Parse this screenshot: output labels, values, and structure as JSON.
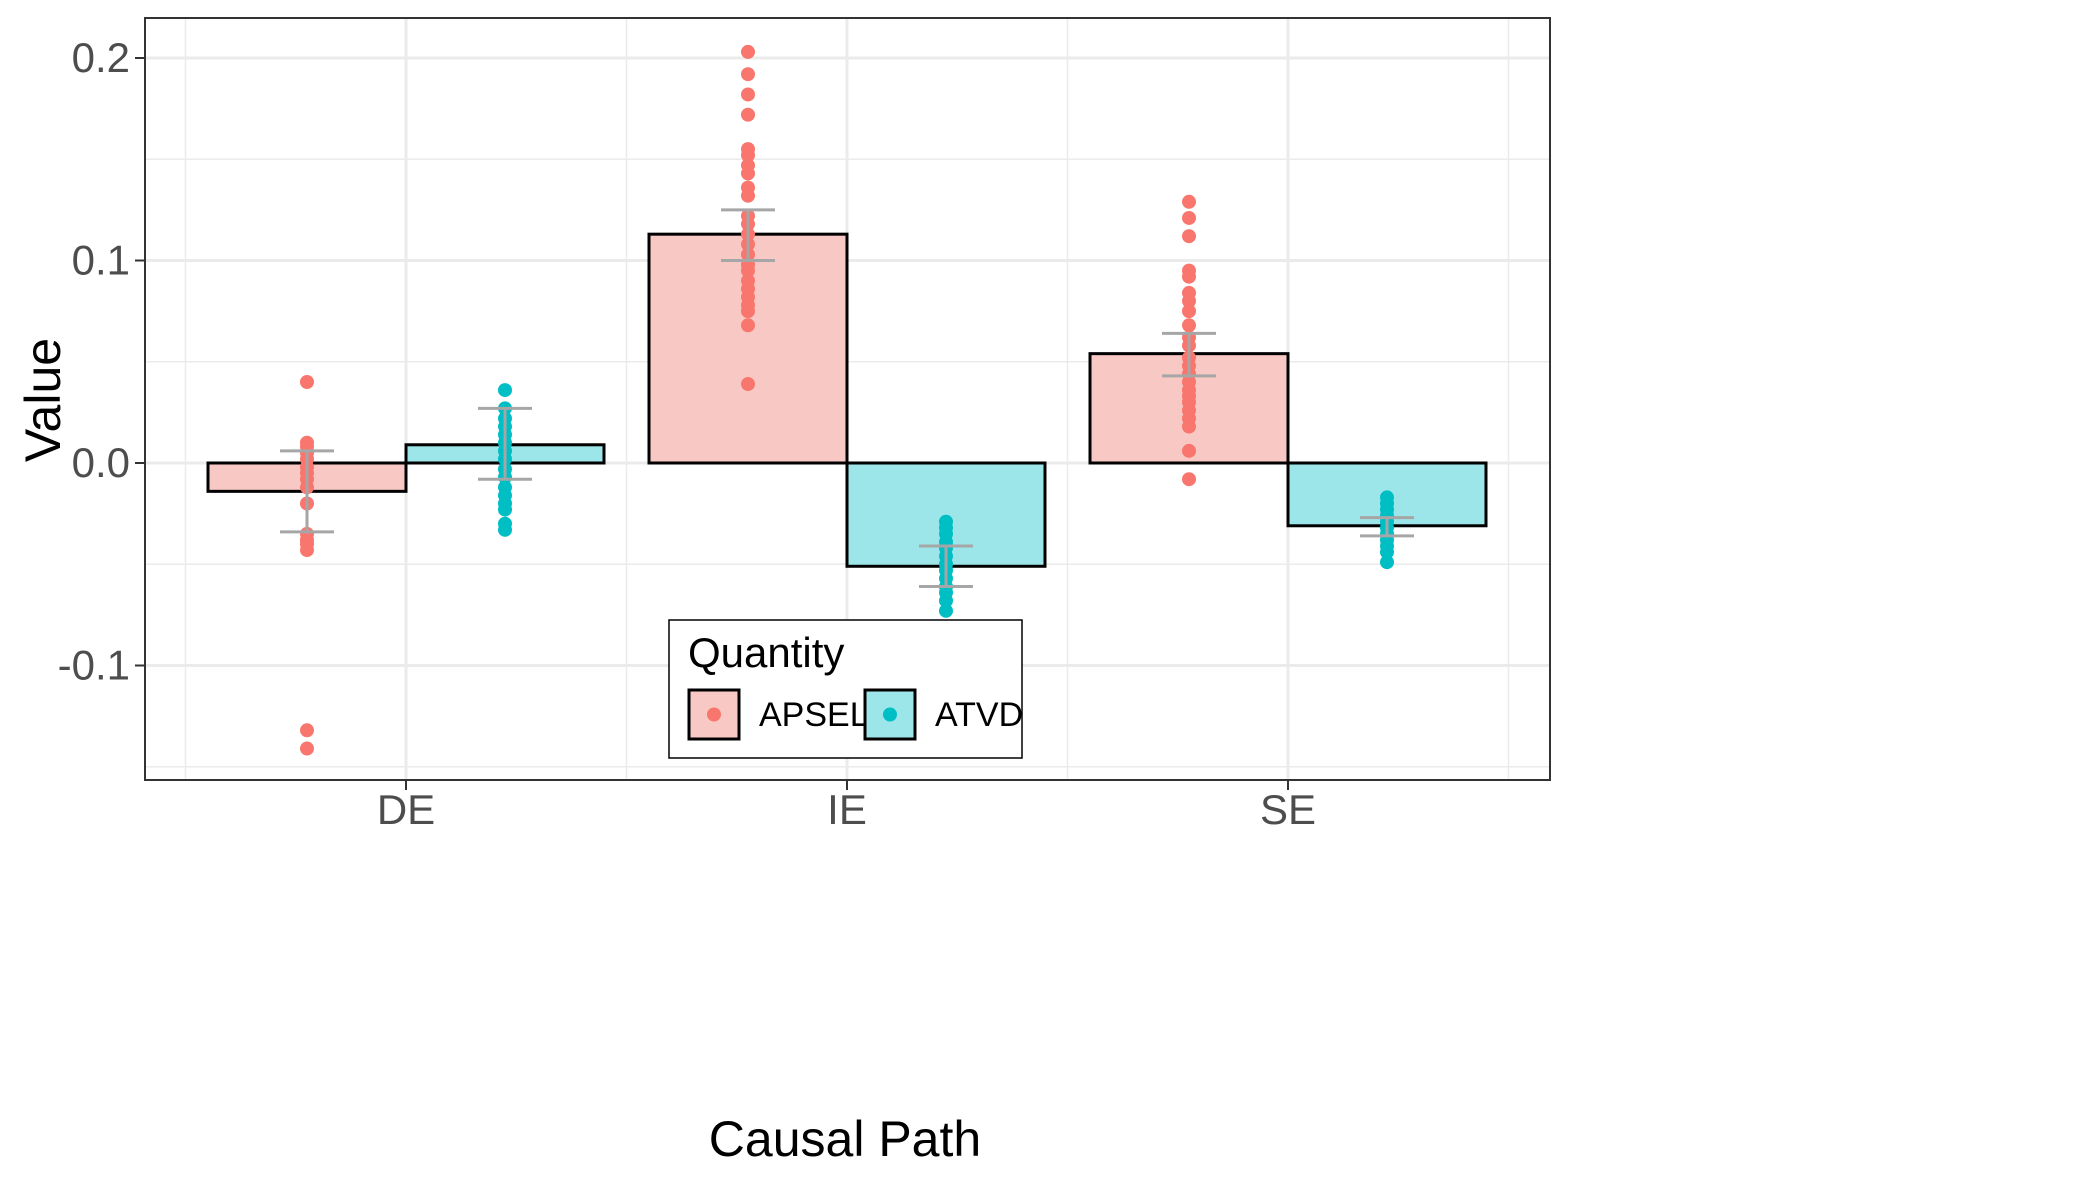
{
  "chart_data": {
    "type": "bar",
    "title": "",
    "xlabel": "Causal Path",
    "ylabel": "Value",
    "categories": [
      "DE",
      "IE",
      "SE"
    ],
    "ylim": [
      -0.15,
      0.21
    ],
    "y_ticks": [
      0.2,
      0.1,
      0.0,
      -0.1
    ],
    "y_tick_labels": [
      "0.2",
      "0.1",
      "0.0",
      "-0.1"
    ],
    "grid": true,
    "legend_position": "bottom-center",
    "legend_title": "Quantity",
    "series": [
      {
        "name": "APSEL",
        "fill": "#f8c8c4",
        "point_color": "#f8766d",
        "values": [
          -0.014,
          0.113,
          0.054
        ],
        "error": [
          [
            -0.034,
            0.006
          ],
          [
            0.1,
            0.125
          ],
          [
            0.043,
            0.064
          ]
        ],
        "points": [
          [
            0.04,
            0.01,
            0.008,
            0.005,
            0.002,
            -0.002,
            -0.005,
            -0.008,
            -0.012,
            -0.02,
            -0.035,
            -0.038,
            -0.04,
            -0.043,
            -0.132,
            -0.141
          ],
          [
            0.203,
            0.192,
            0.182,
            0.172,
            0.155,
            0.152,
            0.147,
            0.143,
            0.136,
            0.132,
            0.122,
            0.118,
            0.113,
            0.108,
            0.103,
            0.098,
            0.095,
            0.09,
            0.086,
            0.082,
            0.078,
            0.075,
            0.068,
            0.039
          ],
          [
            0.129,
            0.121,
            0.112,
            0.095,
            0.092,
            0.084,
            0.08,
            0.075,
            0.068,
            0.062,
            0.058,
            0.052,
            0.048,
            0.044,
            0.04,
            0.036,
            0.033,
            0.03,
            0.026,
            0.022,
            0.018,
            0.006,
            -0.008
          ]
        ]
      },
      {
        "name": "ATVD",
        "fill": "#9ce5e8",
        "point_color": "#00bfc4",
        "values": [
          0.009,
          -0.051,
          -0.031
        ],
        "error": [
          [
            -0.008,
            0.027
          ],
          [
            -0.061,
            -0.041
          ],
          [
            -0.036,
            -0.027
          ]
        ],
        "points": [
          [
            0.036,
            0.027,
            0.022,
            0.018,
            0.014,
            0.01,
            0.006,
            0.002,
            -0.003,
            -0.007,
            -0.012,
            -0.016,
            -0.02,
            -0.023,
            -0.03,
            -0.033
          ],
          [
            -0.029,
            -0.032,
            -0.035,
            -0.039,
            -0.042,
            -0.046,
            -0.05,
            -0.053,
            -0.057,
            -0.061,
            -0.064,
            -0.068,
            -0.073
          ],
          [
            -0.017,
            -0.02,
            -0.023,
            -0.026,
            -0.029,
            -0.032,
            -0.035,
            -0.038,
            -0.041,
            -0.044,
            -0.049
          ]
        ]
      }
    ]
  }
}
